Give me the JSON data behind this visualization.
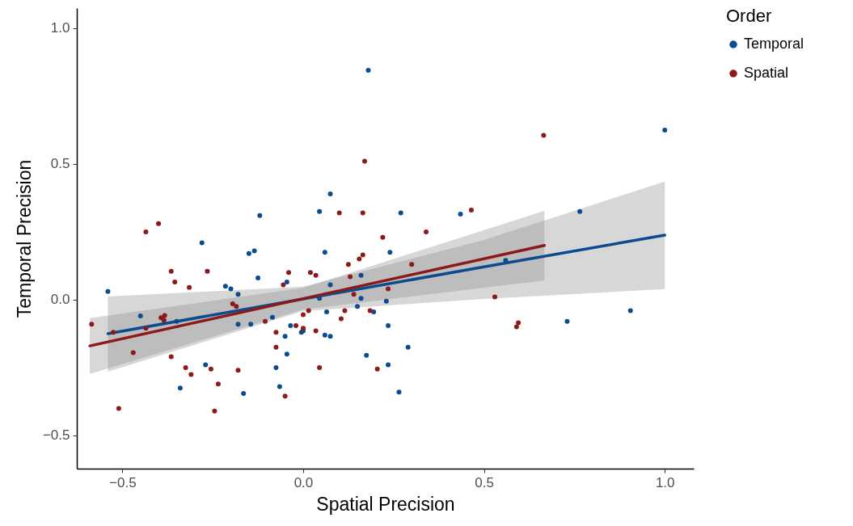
{
  "chart_data": {
    "type": "scatter",
    "xlabel": "Spatial Precision",
    "ylabel": "Temporal Precision",
    "legend_title": "Order",
    "legend": "right",
    "xlim": [
      -0.626,
      1.08
    ],
    "ylim": [
      -0.622,
      1.074
    ],
    "xticks": [
      -0.5,
      {
        "value": 0,
        "label": "0.0"
      },
      0.5,
      {
        "value": 1,
        "label": "1.0"
      }
    ],
    "yticks": [
      -0.5,
      {
        "value": 0,
        "label": "0.0"
      },
      0.5,
      {
        "value": 1,
        "label": "1.0"
      }
    ],
    "series": [
      {
        "type": "line",
        "color": "#0c4b8e",
        "x": [
          -0.54,
          0,
          0.5,
          1.0
        ],
        "values": [
          -0.125,
          0.003,
          0.121,
          0.238
        ],
        "lower": [
          -0.265,
          -0.042,
          0.003,
          0.039
        ],
        "upper": [
          0.012,
          0.048,
          0.22,
          0.435
        ]
      },
      {
        "type": "line",
        "color": "#8b1a1a",
        "x": [
          -0.59,
          0,
          0.667
        ],
        "values": [
          -0.17,
          0.004,
          0.2
        ],
        "lower": [
          -0.273,
          -0.036,
          0.071
        ],
        "upper": [
          -0.068,
          0.044,
          0.327
        ]
      },
      {
        "name": "Temporal",
        "color": "#0c4b8e",
        "marker": "circle",
        "x": [
          -0.54,
          -0.45,
          -0.35,
          -0.28,
          -0.215,
          -0.2,
          -0.18,
          -0.15,
          -0.135,
          -0.12,
          -0.125,
          -0.18,
          -0.145,
          -0.085,
          -0.035,
          -0.005,
          0.0,
          -0.05,
          -0.045,
          -0.075,
          -0.065,
          -0.165,
          -0.27,
          -0.34,
          0.075,
          0.045,
          0.27,
          0.06,
          0.24,
          -0.045,
          0.075,
          0.16,
          0.045,
          0.16,
          0.15,
          0.195,
          0.23,
          0.065,
          0.06,
          0.075,
          0.235,
          0.29,
          0.175,
          0.235,
          0.265,
          0.18,
          1.0,
          0.435,
          0.765,
          0.56,
          0.905,
          0.73
        ],
        "values": [
          0.03,
          -0.06,
          -0.08,
          0.21,
          0.05,
          0.04,
          0.02,
          0.17,
          0.18,
          0.31,
          0.08,
          -0.09,
          -0.09,
          -0.065,
          -0.095,
          -0.12,
          -0.115,
          -0.135,
          -0.2,
          -0.25,
          -0.32,
          -0.345,
          -0.24,
          -0.325,
          0.39,
          0.325,
          0.32,
          0.175,
          0.175,
          0.065,
          0.055,
          0.09,
          0.005,
          0.005,
          -0.025,
          -0.045,
          -0.005,
          -0.045,
          -0.13,
          -0.135,
          -0.095,
          -0.175,
          -0.205,
          -0.24,
          -0.34,
          0.845,
          0.625,
          0.315,
          0.325,
          0.145,
          -0.04,
          -0.08
        ]
      },
      {
        "name": "Spatial",
        "color": "#8b1a1a",
        "marker": "circle",
        "x": [
          -0.585,
          -0.525,
          -0.435,
          -0.4,
          -0.47,
          -0.51,
          -0.435,
          -0.393,
          -0.383,
          -0.385,
          -0.365,
          -0.355,
          -0.365,
          -0.315,
          -0.325,
          -0.31,
          -0.265,
          -0.255,
          -0.235,
          -0.245,
          -0.18,
          -0.195,
          -0.185,
          -0.105,
          -0.075,
          -0.075,
          -0.05,
          -0.055,
          -0.04,
          -0.02,
          0.17,
          0.1,
          0.165,
          0.34,
          0.22,
          0.125,
          0.155,
          0.165,
          0.3,
          0.13,
          0.02,
          0.035,
          0.14,
          0.235,
          0.015,
          0.0,
          0.115,
          0.105,
          0.185,
          0.0,
          0.035,
          0.045,
          0.205,
          0.665,
          0.465,
          0.53,
          0.595,
          0.59
        ],
        "values": [
          -0.09,
          -0.12,
          0.25,
          0.28,
          -0.195,
          -0.4,
          -0.105,
          -0.066,
          -0.058,
          -0.075,
          0.105,
          0.065,
          -0.21,
          0.045,
          -0.25,
          -0.275,
          0.105,
          -0.255,
          -0.31,
          -0.41,
          -0.26,
          -0.015,
          -0.025,
          -0.08,
          -0.12,
          -0.175,
          -0.355,
          0.055,
          0.1,
          -0.095,
          0.51,
          0.32,
          0.32,
          0.25,
          0.23,
          0.13,
          0.15,
          0.165,
          0.13,
          0.085,
          0.1,
          0.09,
          0.02,
          0.04,
          -0.04,
          -0.055,
          -0.04,
          -0.07,
          -0.04,
          -0.105,
          -0.115,
          -0.25,
          -0.255,
          0.605,
          0.33,
          0.01,
          -0.085,
          -0.1
        ]
      }
    ]
  }
}
